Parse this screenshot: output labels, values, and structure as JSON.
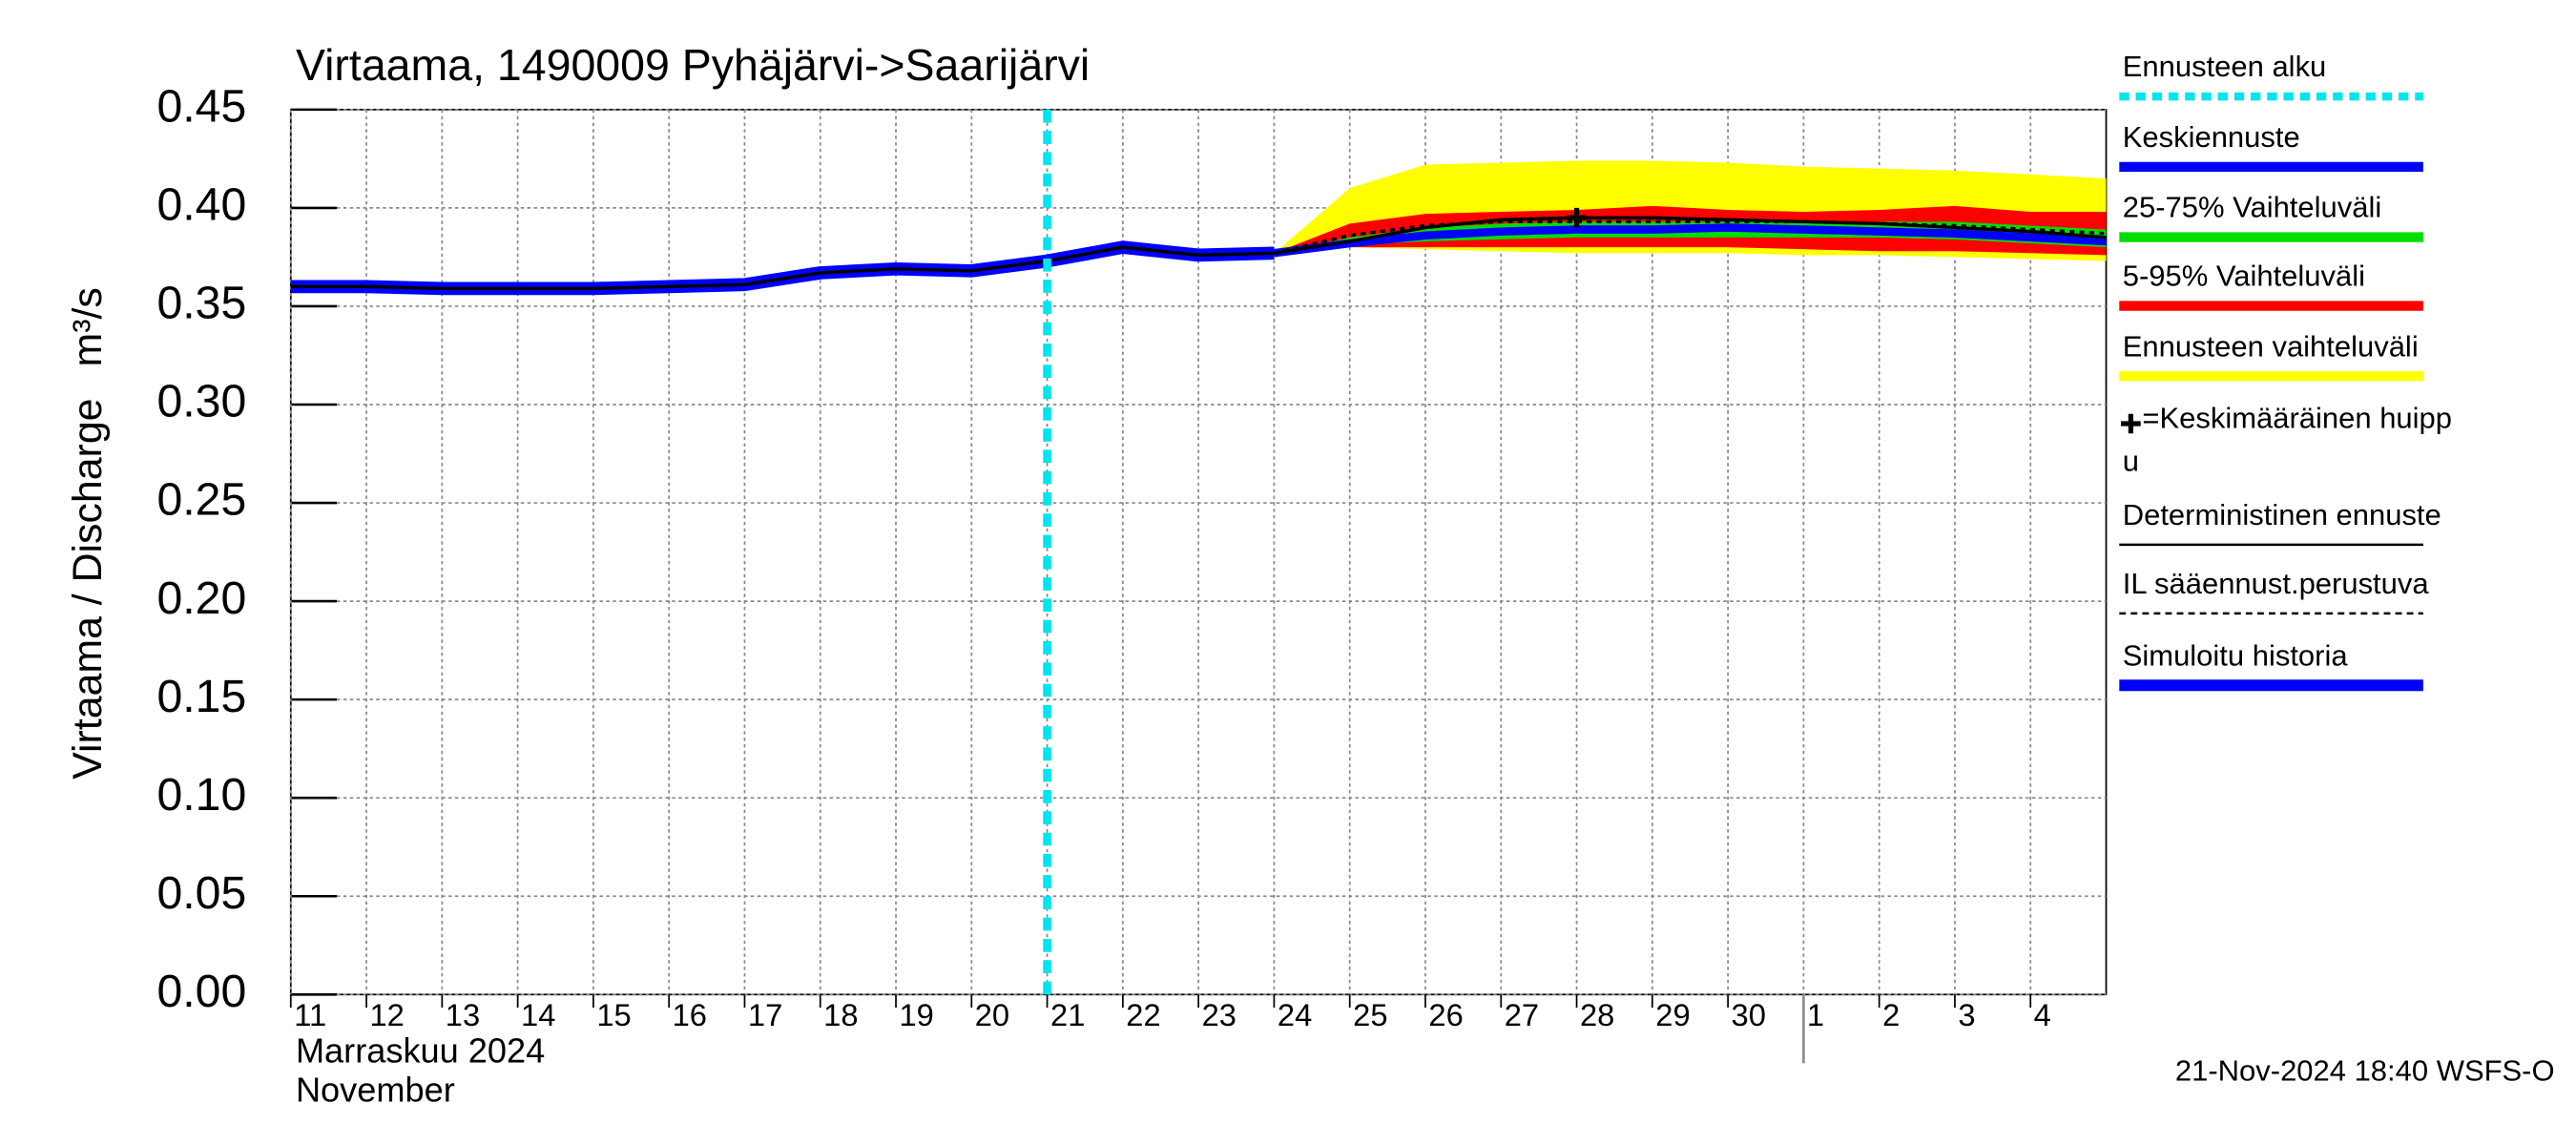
{
  "chart_data": {
    "type": "line",
    "title": "Virtaama, 1490009 Pyhäjärvi->Saarijärvi",
    "y_label": "Virtaama / Discharge",
    "y_unit": "m³/s",
    "month_labels": [
      "Marraskuu 2024",
      "November"
    ],
    "timestamp": "21-Nov-2024 18:40 WSFS-O",
    "xlim": [
      0,
      24
    ],
    "ylim": [
      0,
      0.45
    ],
    "grid": true,
    "month_separator": 20,
    "xticks": [
      {
        "value": 0,
        "label": "11"
      },
      {
        "value": 1,
        "label": "12"
      },
      {
        "value": 2,
        "label": "13"
      },
      {
        "value": 3,
        "label": "14"
      },
      {
        "value": 4,
        "label": "15"
      },
      {
        "value": 5,
        "label": "16"
      },
      {
        "value": 6,
        "label": "17"
      },
      {
        "value": 7,
        "label": "18"
      },
      {
        "value": 8,
        "label": "19"
      },
      {
        "value": 9,
        "label": "20"
      },
      {
        "value": 10,
        "label": "21"
      },
      {
        "value": 11,
        "label": "22"
      },
      {
        "value": 12,
        "label": "23"
      },
      {
        "value": 13,
        "label": "24"
      },
      {
        "value": 14,
        "label": "25"
      },
      {
        "value": 15,
        "label": "26"
      },
      {
        "value": 16,
        "label": "27"
      },
      {
        "value": 17,
        "label": "28"
      },
      {
        "value": 18,
        "label": "29"
      },
      {
        "value": 19,
        "label": "30"
      },
      {
        "value": 20,
        "label": "1"
      },
      {
        "value": 21,
        "label": "2"
      },
      {
        "value": 22,
        "label": "3"
      },
      {
        "value": 23,
        "label": "4"
      }
    ],
    "yticks": [
      {
        "value": 0,
        "label": "0.00"
      },
      {
        "value": 0.05,
        "label": "0.05"
      },
      {
        "value": 0.1,
        "label": "0.10"
      },
      {
        "value": 0.15,
        "label": "0.15"
      },
      {
        "value": 0.2,
        "label": "0.20"
      },
      {
        "value": 0.25,
        "label": "0.25"
      },
      {
        "value": 0.3,
        "label": "0.30"
      },
      {
        "value": 0.35,
        "label": "0.35"
      },
      {
        "value": 0.4,
        "label": "0.40"
      },
      {
        "value": 0.45,
        "label": "0.45"
      }
    ],
    "x": [
      0,
      1,
      2,
      3,
      4,
      5,
      6,
      7,
      8,
      9,
      10,
      11,
      12,
      13,
      14,
      15,
      16,
      17,
      18,
      19,
      20,
      21,
      22,
      23,
      24
    ],
    "forecast_start": {
      "name": "Ennusteen alku",
      "x": 10,
      "color": "#00e5ee"
    },
    "bands": [
      {
        "name": "Ennusteen vaihteluväli",
        "color": "#ffff00",
        "low": [
          null,
          null,
          null,
          null,
          null,
          null,
          null,
          null,
          null,
          null,
          null,
          null,
          null,
          0.377,
          0.38,
          0.379,
          0.378,
          0.377,
          0.377,
          0.377,
          0.376,
          0.376,
          0.375,
          0.374,
          0.373
        ],
        "high": [
          null,
          null,
          null,
          null,
          null,
          null,
          null,
          null,
          null,
          null,
          null,
          null,
          null,
          0.377,
          0.41,
          0.422,
          0.423,
          0.424,
          0.424,
          0.423,
          0.421,
          0.42,
          0.419,
          0.417,
          0.415
        ]
      },
      {
        "name": "5-95% Vaihteluväli",
        "color": "#ff0000",
        "low": [
          null,
          null,
          null,
          null,
          null,
          null,
          null,
          null,
          null,
          null,
          null,
          null,
          null,
          0.377,
          0.38,
          0.38,
          0.38,
          0.38,
          0.38,
          0.38,
          0.379,
          0.378,
          0.378,
          0.377,
          0.376
        ],
        "high": [
          null,
          null,
          null,
          null,
          null,
          null,
          null,
          null,
          null,
          null,
          null,
          null,
          null,
          0.377,
          0.392,
          0.397,
          0.398,
          0.399,
          0.401,
          0.399,
          0.398,
          0.399,
          0.401,
          0.398,
          0.398
        ]
      },
      {
        "name": "25-75% Vaihteluväli",
        "color": "#00dd00",
        "low": [
          null,
          null,
          null,
          null,
          null,
          null,
          null,
          null,
          null,
          null,
          null,
          null,
          null,
          0.377,
          0.381,
          0.383,
          0.384,
          0.385,
          0.385,
          0.385,
          0.385,
          0.385,
          0.384,
          0.382,
          0.38
        ],
        "high": [
          null,
          null,
          null,
          null,
          null,
          null,
          null,
          null,
          null,
          null,
          null,
          null,
          null,
          0.377,
          0.385,
          0.39,
          0.392,
          0.393,
          0.393,
          0.393,
          0.393,
          0.393,
          0.393,
          0.391,
          0.389
        ]
      }
    ],
    "series": [
      {
        "name": "Keskiennuste",
        "color": "#0000ff",
        "values": [
          null,
          null,
          null,
          null,
          null,
          null,
          null,
          null,
          null,
          null,
          null,
          null,
          null,
          0.377,
          0.382,
          0.386,
          0.388,
          0.389,
          0.389,
          0.39,
          0.389,
          0.388,
          0.387,
          0.385,
          0.383
        ]
      },
      {
        "name": "Simuloitu historia",
        "color": "#0000ff",
        "values": [
          0.36,
          0.36,
          0.359,
          0.359,
          0.359,
          0.36,
          0.361,
          0.367,
          0.369,
          0.368,
          0.373,
          0.38,
          0.376,
          0.377,
          null,
          null,
          null,
          null,
          null,
          null,
          null,
          null,
          null,
          null,
          null
        ]
      },
      {
        "name": "Deterministinen ennuste",
        "color": "#000000",
        "values": [
          0.36,
          0.36,
          0.359,
          0.359,
          0.359,
          0.36,
          0.361,
          0.367,
          0.369,
          0.368,
          0.373,
          0.38,
          0.376,
          0.377,
          0.383,
          0.39,
          0.394,
          0.395,
          0.395,
          0.394,
          0.393,
          0.392,
          0.39,
          0.388,
          0.385
        ]
      },
      {
        "name": "IL sääennust.perustuva",
        "color": "#000000",
        "values": [
          null,
          null,
          null,
          null,
          null,
          null,
          null,
          null,
          null,
          null,
          null,
          null,
          null,
          0.377,
          0.386,
          0.391,
          0.393,
          0.393,
          0.393,
          0.393,
          0.393,
          0.392,
          0.391,
          0.389,
          0.387
        ]
      }
    ],
    "peak": {
      "name": [
        "=Keskimääräinen huipp",
        "u"
      ],
      "x": 17,
      "y": 0.395
    }
  }
}
